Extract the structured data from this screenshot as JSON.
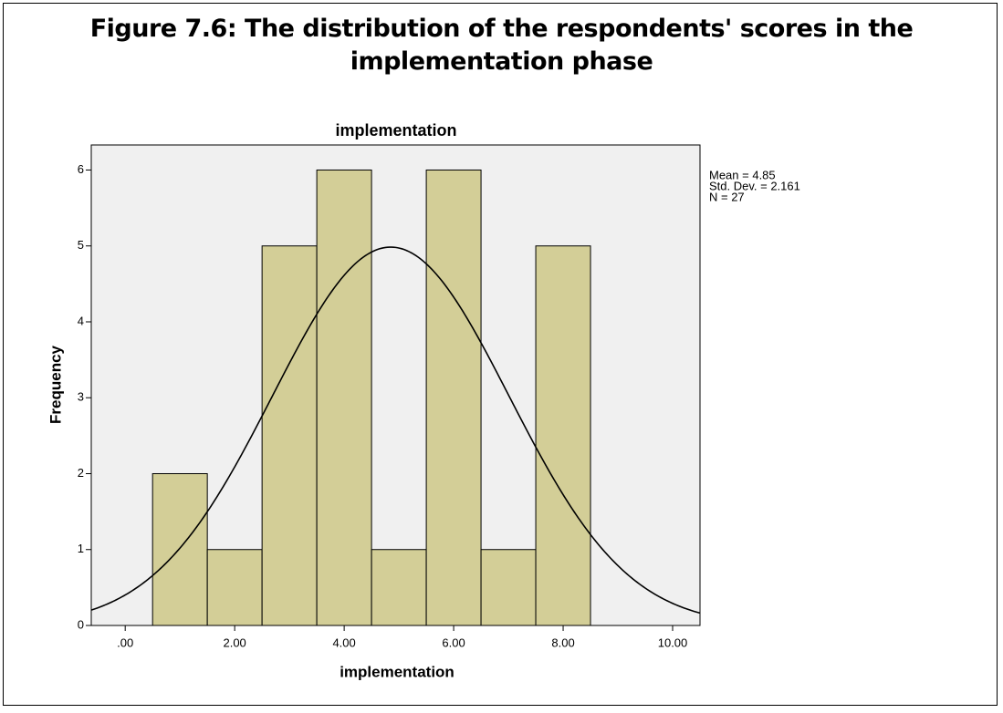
{
  "chart_data": {
    "type": "histogram",
    "figure_title": "Figure 7.6: The distribution of the respondents' scores in the implementation phase",
    "title": "implementation",
    "x_label": "implementation",
    "y_label": "Frequency",
    "bins": [
      0.5,
      1.5,
      2.5,
      3.5,
      4.5,
      5.5,
      6.5,
      7.5,
      8.5
    ],
    "values": [
      2,
      1,
      5,
      6,
      1,
      6,
      1,
      5
    ],
    "color": "#d3ce97",
    "xlim": [
      -0.62,
      10.5
    ],
    "xticks": [
      {
        "value": 0,
        "label": ".00"
      },
      {
        "value": 2,
        "label": "2.00"
      },
      {
        "value": 4,
        "label": "4.00"
      },
      {
        "value": 6,
        "label": "6.00"
      },
      {
        "value": 8,
        "label": "8.00"
      },
      {
        "value": 10,
        "label": "10.00"
      }
    ],
    "ylim": [
      0,
      6.33
    ],
    "yticks": [
      0,
      1,
      2,
      3,
      4,
      5,
      6
    ],
    "stats": [
      {
        "value": 4.85,
        "label": "Mean = 4.85"
      },
      {
        "value": 2.161,
        "label": "Std. Dev. = 2.161"
      },
      {
        "value": 27,
        "label": "N = 27"
      }
    ],
    "normal_curve": true
  }
}
